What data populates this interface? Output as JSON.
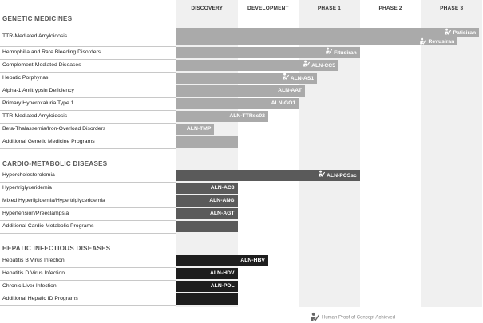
{
  "chart_data": {
    "type": "bar",
    "phases": [
      "DISCOVERY",
      "DEVELOPMENT",
      "PHASE 1",
      "PHASE 2",
      "PHASE 3"
    ],
    "sections": [
      {
        "title": "GENETIC MEDICINES",
        "color": "#aaaaaa",
        "rows": [
          {
            "indication": "TTR-Mediated Amyloidosis",
            "programs": [
              {
                "name": "Patisiran",
                "stage": 4.95,
                "poc": true
              },
              {
                "name": "Revusiran",
                "stage": 4.6,
                "poc": true
              }
            ]
          },
          {
            "indication": "Hemophilia and Rare Bleeding Disorders",
            "programs": [
              {
                "name": "Fitusiran",
                "stage": 3.0,
                "poc": true
              }
            ]
          },
          {
            "indication": "Complement-Mediated Diseases",
            "programs": [
              {
                "name": "ALN-CC5",
                "stage": 2.65,
                "poc": true
              }
            ]
          },
          {
            "indication": "Hepatic Porphyrias",
            "programs": [
              {
                "name": "ALN-AS1",
                "stage": 2.3,
                "poc": true
              }
            ]
          },
          {
            "indication": "Alpha-1 Antitrypsin Deficiency",
            "programs": [
              {
                "name": "ALN-AAT",
                "stage": 2.1,
                "poc": false
              }
            ]
          },
          {
            "indication": "Primary Hyperoxaluria Type 1",
            "programs": [
              {
                "name": "ALN-GO1",
                "stage": 2.0,
                "poc": false
              }
            ]
          },
          {
            "indication": "TTR-Mediated Amyloidosis",
            "programs": [
              {
                "name": "ALN-TTRsc02",
                "stage": 1.5,
                "poc": false
              }
            ]
          },
          {
            "indication": "Beta-Thalassemia/Iron-Overload Disorders",
            "programs": [
              {
                "name": "ALN-TMP",
                "stage": 0.62,
                "poc": false
              }
            ]
          },
          {
            "indication": "Additional Genetic Medicine Programs",
            "programs": [
              {
                "name": "",
                "stage": 1.0,
                "poc": false
              }
            ]
          }
        ]
      },
      {
        "title": "CARDIO-METABOLIC DISEASES",
        "color": "#5a5a5a",
        "rows": [
          {
            "indication": "Hypercholesterolemia",
            "programs": [
              {
                "name": "ALN-PCSsc",
                "stage": 3.0,
                "poc": true
              }
            ]
          },
          {
            "indication": "Hypertriglyceridemia",
            "programs": [
              {
                "name": "ALN-AC3",
                "stage": 1.0,
                "poc": false
              }
            ]
          },
          {
            "indication": "Mixed Hyperlipidemia/Hypertriglyceridemia",
            "programs": [
              {
                "name": "ALN-ANG",
                "stage": 1.0,
                "poc": false
              }
            ]
          },
          {
            "indication": "Hypertension/Preeclampsia",
            "programs": [
              {
                "name": "ALN-AGT",
                "stage": 1.0,
                "poc": false
              }
            ]
          },
          {
            "indication": "Additional Cardio-Metabolic Programs",
            "programs": [
              {
                "name": "",
                "stage": 1.0,
                "poc": false
              }
            ]
          }
        ]
      },
      {
        "title": "HEPATIC INFECTIOUS DISEASES",
        "color": "#1e1e1e",
        "rows": [
          {
            "indication": "Hepatitis B Virus Infection",
            "programs": [
              {
                "name": "ALN-HBV",
                "stage": 1.5,
                "poc": false
              }
            ]
          },
          {
            "indication": "Hepatitis D Virus Infection",
            "programs": [
              {
                "name": "ALN-HDV",
                "stage": 1.0,
                "poc": false
              }
            ]
          },
          {
            "indication": "Chronic Liver Infection",
            "programs": [
              {
                "name": "ALN-PDL",
                "stage": 1.0,
                "poc": false
              }
            ]
          },
          {
            "indication": "Additional Hepatic ID Programs",
            "programs": [
              {
                "name": "",
                "stage": 1.0,
                "poc": false
              }
            ]
          }
        ]
      }
    ],
    "legend": {
      "label": "Human Proof of Concept Achieved"
    }
  }
}
